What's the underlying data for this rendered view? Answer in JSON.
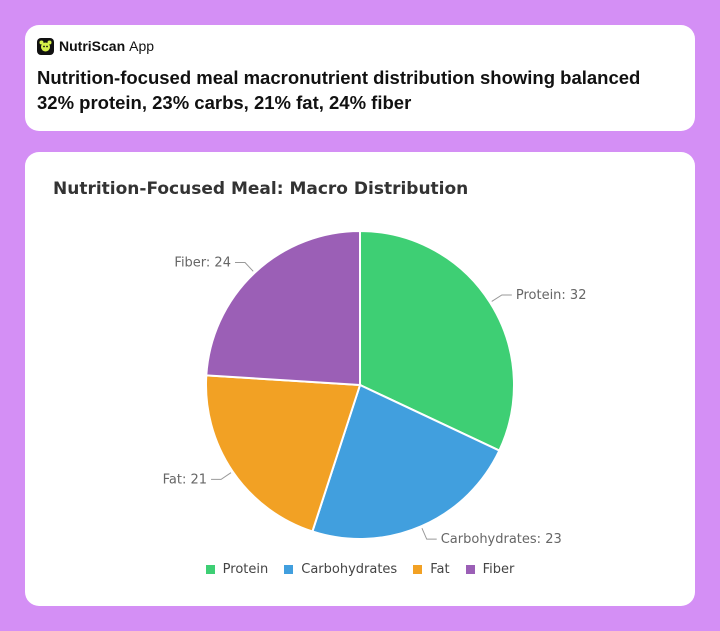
{
  "app": {
    "name": "NutriScan",
    "suffix": "App",
    "headline": "Nutrition-focused meal macronutrient distribution showing balanced 32% protein, 23% carbs, 21% fat, 24% fiber"
  },
  "chart_data": {
    "type": "pie",
    "title": "Nutrition-Focused Meal: Macro Distribution",
    "legend_position": "bottom",
    "slices": [
      {
        "name": "Protein",
        "value": 32,
        "label": "Protein: 32",
        "color": "#3ecf74"
      },
      {
        "name": "Carbohydrates",
        "value": 23,
        "label": "Carbohydrates: 23",
        "color": "#419fde"
      },
      {
        "name": "Fat",
        "value": 21,
        "label": "Fat: 21",
        "color": "#f2a124"
      },
      {
        "name": "Fiber",
        "value": 24,
        "label": "Fiber: 24",
        "color": "#9b5fb6"
      }
    ]
  }
}
